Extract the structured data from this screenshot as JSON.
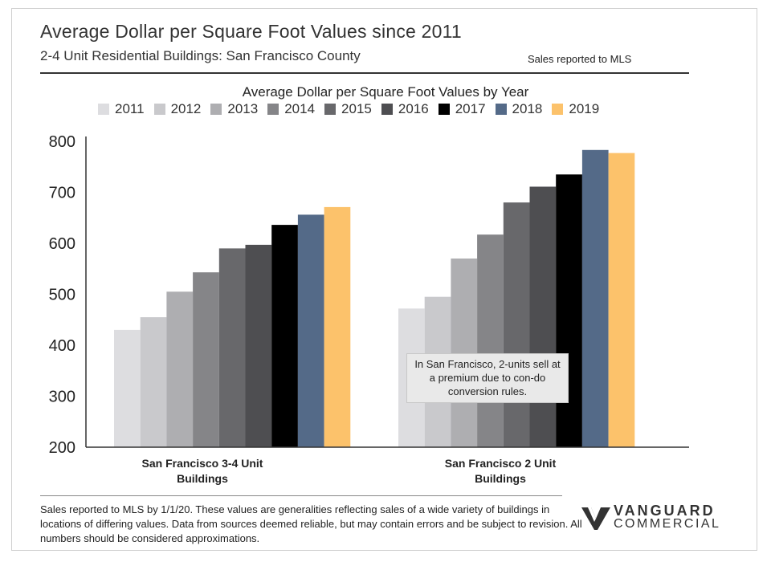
{
  "header": {
    "title": "Average Dollar per Square Foot Values since 2011",
    "subtitle": "2-4 Unit Residential Buildings: San Francisco County",
    "mls_note": "Sales reported to MLS"
  },
  "chart_data": {
    "type": "bar",
    "title": "Average Dollar per Square Foot Values by Year",
    "categories": [
      "San Francisco 3-4 Unit Buildings",
      "San Francisco 2 Unit Buildings"
    ],
    "category_lines": [
      [
        "San Francisco 3-4 Unit",
        "Buildings"
      ],
      [
        "San Francisco 2 Unit",
        "Buildings"
      ]
    ],
    "series": [
      {
        "name": "2011",
        "color": "#dddde0",
        "values": [
          430,
          472
        ]
      },
      {
        "name": "2012",
        "color": "#c9c9cc",
        "values": [
          455,
          495
        ]
      },
      {
        "name": "2013",
        "color": "#aeaeb1",
        "values": [
          505,
          570
        ]
      },
      {
        "name": "2014",
        "color": "#858588",
        "values": [
          543,
          617
        ]
      },
      {
        "name": "2015",
        "color": "#68686b",
        "values": [
          590,
          680
        ]
      },
      {
        "name": "2016",
        "color": "#4e4e51",
        "values": [
          597,
          711
        ]
      },
      {
        "name": "2017",
        "color": "#000000",
        "values": [
          636,
          735
        ]
      },
      {
        "name": "2018",
        "color": "#546a88",
        "values": [
          656,
          783
        ]
      },
      {
        "name": "2019",
        "color": "#fcc26b",
        "values": [
          671,
          777
        ]
      }
    ],
    "yticks": [
      200,
      300,
      400,
      500,
      600,
      700,
      800
    ],
    "ylim": [
      200,
      800
    ],
    "legend_position": "top",
    "annotation": "In San Francisco, 2-units sell at a premium due to con-do conversion rules."
  },
  "footer": {
    "footnote": "Sales reported to MLS by 1/1/20. These values are generalities reflecting sales of a wide variety of buildings in locations of differing values. Data from sources deemed reliable, but may contain errors and be subject to revision. All numbers should be considered approximations.",
    "logo_line1": "VANGUARD",
    "logo_line2": "COMMERCIAL"
  }
}
